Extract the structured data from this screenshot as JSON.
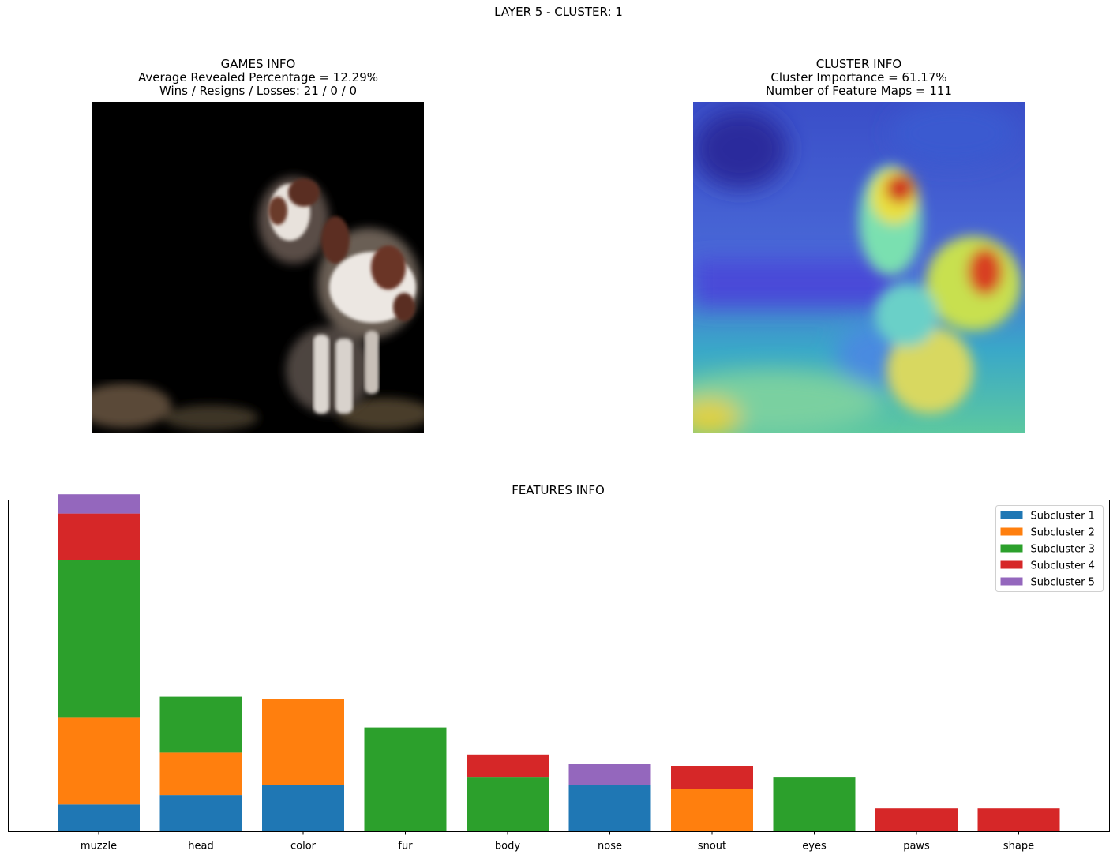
{
  "suptitle": "LAYER 5 - CLUSTER: 1",
  "games_panel": {
    "title": "GAMES INFO",
    "line1": "Average Revealed Percentage = 12.29%",
    "line2": "Wins / Resigns / Losses: 21 / 0 / 0"
  },
  "cluster_panel": {
    "title": "CLUSTER INFO",
    "line1": "Cluster Importance = 61.17%",
    "line2": "Number of Feature Maps = 111"
  },
  "chart_data": {
    "type": "bar",
    "stacked": true,
    "title": "FEATURES INFO",
    "xlabel": "",
    "ylabel": "",
    "y_ticks_visible": false,
    "ylim": [
      0,
      17.2
    ],
    "legend_position": "top-right",
    "categories": [
      "muzzle",
      "head",
      "color",
      "fur",
      "body",
      "nose",
      "snout",
      "eyes",
      "paws",
      "shape"
    ],
    "series": [
      {
        "name": "Subcluster 1",
        "color": "#1f77b4",
        "values": [
          1.4,
          1.9,
          2.4,
          0,
          0,
          2.4,
          0,
          0,
          0,
          0
        ]
      },
      {
        "name": "Subcluster 2",
        "color": "#ff7f0e",
        "values": [
          4.5,
          2.2,
          4.5,
          0,
          0,
          0,
          2.2,
          0,
          0,
          0
        ]
      },
      {
        "name": "Subcluster 3",
        "color": "#2ca02c",
        "values": [
          8.2,
          2.9,
          0,
          5.4,
          2.8,
          0,
          0,
          2.8,
          0,
          0
        ]
      },
      {
        "name": "Subcluster 4",
        "color": "#d62728",
        "values": [
          2.4,
          0,
          0,
          0,
          1.2,
          0,
          1.2,
          0,
          1.2,
          1.2
        ]
      },
      {
        "name": "Subcluster 5",
        "color": "#9467bd",
        "values": [
          1.0,
          0,
          0,
          0,
          0,
          1.1,
          0,
          0,
          0,
          0
        ]
      }
    ]
  }
}
